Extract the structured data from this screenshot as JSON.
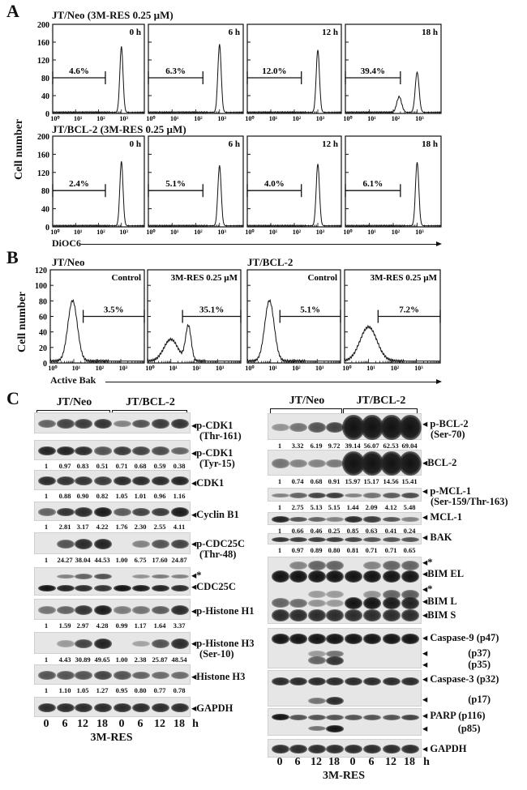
{
  "panels": {
    "a": "A",
    "b": "B",
    "c": "C"
  },
  "chart_data": [
    {
      "type": "histogram",
      "panel": "A",
      "ylabel": "Cell number",
      "xlabel": "DiOC6",
      "ylim": [
        0,
        200
      ],
      "yticks": [
        "0",
        "40",
        "80",
        "120",
        "160",
        "200"
      ],
      "xticks": [
        "10⁰",
        "10¹",
        "10²",
        "10³"
      ],
      "xlim_log10": [
        0,
        4
      ],
      "rows": [
        {
          "title": "JT/Neo (3M-RES 0.25 µM)",
          "plots": [
            {
              "label": "0 h",
              "percent": "4.6%",
              "gate_log10": [
                0,
                2.3
              ],
              "peaks": [
                {
                  "log10": 3.0,
                  "count": 148,
                  "sd": 0.07
                }
              ]
            },
            {
              "label": "6 h",
              "percent": "6.3%",
              "gate_log10": [
                0,
                2.3
              ],
              "peaks": [
                {
                  "log10": 3.0,
                  "count": 153,
                  "sd": 0.07
                }
              ]
            },
            {
              "label": "12 h",
              "percent": "12.0%",
              "gate_log10": [
                0,
                2.3
              ],
              "peaks": [
                {
                  "log10": 3.0,
                  "count": 140,
                  "sd": 0.07
                }
              ]
            },
            {
              "label": "18 h",
              "percent": "39.4%",
              "gate_log10": [
                0,
                2.3
              ],
              "peaks": [
                {
                  "log10": 2.25,
                  "count": 35,
                  "sd": 0.1
                },
                {
                  "log10": 3.0,
                  "count": 90,
                  "sd": 0.08
                }
              ]
            }
          ]
        },
        {
          "title": "JT/BCL-2 (3M-RES 0.25 µM)",
          "plots": [
            {
              "label": "0 h",
              "percent": "2.4%",
              "gate_log10": [
                0,
                2.3
              ],
              "peaks": [
                {
                  "log10": 3.0,
                  "count": 142,
                  "sd": 0.07
                }
              ]
            },
            {
              "label": "6 h",
              "percent": "5.1%",
              "gate_log10": [
                0,
                2.3
              ],
              "peaks": [
                {
                  "log10": 3.0,
                  "count": 133,
                  "sd": 0.07
                }
              ]
            },
            {
              "label": "12 h",
              "percent": "4.0%",
              "gate_log10": [
                0,
                2.3
              ],
              "peaks": [
                {
                  "log10": 3.0,
                  "count": 136,
                  "sd": 0.07
                }
              ]
            },
            {
              "label": "18 h",
              "percent": "6.1%",
              "gate_log10": [
                0,
                2.3
              ],
              "peaks": [
                {
                  "log10": 3.0,
                  "count": 140,
                  "sd": 0.07
                }
              ]
            }
          ]
        }
      ]
    },
    {
      "type": "histogram",
      "panel": "B",
      "ylabel": "Cell number",
      "xlabel": "Active Bak",
      "ylim": [
        0,
        120
      ],
      "yticks": [
        "0",
        "20",
        "40",
        "60",
        "80",
        "100",
        "120"
      ],
      "xticks": [
        "10⁰",
        "10¹",
        "10²",
        "10³"
      ],
      "xlim_log10": [
        0,
        4
      ],
      "groups": [
        "JT/Neo",
        "JT/BCL-2"
      ],
      "plots": [
        {
          "label": "Control",
          "percent": "3.5%",
          "gate_log10": [
            1.4,
            4
          ],
          "peaks": [
            {
              "log10": 0.95,
              "count": 78,
              "sd": 0.2
            }
          ]
        },
        {
          "label": "3M-RES 0.25 µM",
          "percent": "35.1%",
          "gate_log10": [
            1.5,
            4
          ],
          "peaks": [
            {
              "log10": 1.0,
              "count": 28,
              "sd": 0.3
            },
            {
              "log10": 1.75,
              "count": 45,
              "sd": 0.12
            }
          ]
        },
        {
          "label": "Control",
          "percent": "5.1%",
          "gate_log10": [
            1.4,
            4
          ],
          "peaks": [
            {
              "log10": 0.95,
              "count": 78,
              "sd": 0.2
            }
          ]
        },
        {
          "label": "3M-RES 0.25 µM",
          "percent": "7.2%",
          "gate_log10": [
            1.4,
            4
          ],
          "peaks": [
            {
              "log10": 1.0,
              "count": 44,
              "sd": 0.35
            }
          ]
        }
      ]
    }
  ],
  "blots": {
    "groups": [
      "JT/Neo",
      "JT/BCL-2"
    ],
    "lanes": [
      "0",
      "6",
      "12",
      "18",
      "0",
      "6",
      "12",
      "18"
    ],
    "unit": "h",
    "treatment": "3M-RES",
    "left": [
      {
        "labels": [
          "◂p-CDK1",
          "(Thr-161)"
        ],
        "bands": [
          [
            0.5,
            0.7,
            0.75,
            0.8,
            0.3,
            0.6,
            0.75,
            0.8
          ]
        ],
        "quant": []
      },
      {
        "labels": [
          "◂p-CDK1",
          "(Tyr-15)"
        ],
        "bands": [
          [
            0.9,
            0.9,
            0.85,
            0.6,
            0.75,
            0.7,
            0.65,
            0.5
          ]
        ],
        "quant": [
          "1",
          "0.97",
          "0.83",
          "0.51",
          "0.71",
          "0.68",
          "0.59",
          "0.38"
        ]
      },
      {
        "labels": [
          "◂CDK1"
        ],
        "bands": [
          [
            0.85,
            0.8,
            0.8,
            0.75,
            0.85,
            0.85,
            0.85,
            0.9
          ]
        ],
        "quant": [
          "1",
          "0.88",
          "0.90",
          "0.82",
          "1.05",
          "1.01",
          "0.96",
          "1.16"
        ]
      },
      {
        "labels": [
          "◂Cyclin B1"
        ],
        "bands": [
          [
            0.5,
            0.8,
            0.85,
            0.95,
            0.55,
            0.7,
            0.75,
            0.95
          ]
        ],
        "quant": [
          "1",
          "2.81",
          "3.17",
          "4.22",
          "1.76",
          "2.30",
          "2.55",
          "4.11"
        ]
      },
      {
        "labels": [
          "◂p-CDC25C",
          "(Thr-48)"
        ],
        "bands": [
          [
            0,
            0.6,
            0.85,
            0.9,
            0,
            0.3,
            0.6,
            0.7
          ]
        ],
        "quant": [
          "1",
          "24.27",
          "38.04",
          "44.53",
          "1.00",
          "6.75",
          "17.60",
          "24.87"
        ]
      },
      {
        "labels": [
          "◂*",
          "◂CDC25C"
        ],
        "bands": [
          [
            0,
            0.3,
            0.5,
            0.6,
            0,
            0.2,
            0.35,
            0.3
          ],
          [
            1,
            0.9,
            0.85,
            0.8,
            1,
            0.95,
            0.9,
            0.85
          ]
        ],
        "quant": []
      },
      {
        "labels": [
          "◂p-Histone H1"
        ],
        "bands": [
          [
            0.4,
            0.5,
            0.8,
            0.95,
            0.35,
            0.4,
            0.55,
            0.85
          ]
        ],
        "quant": [
          "1",
          "1.59",
          "2.97",
          "4.28",
          "0.99",
          "1.17",
          "1.64",
          "3.37"
        ]
      },
      {
        "labels": [
          "◂p-Histone H3",
          "(Ser-10)"
        ],
        "bands": [
          [
            0,
            0.15,
            0.7,
            0.9,
            0,
            0.1,
            0.6,
            0.85
          ]
        ],
        "quant": [
          "1",
          "4.43",
          "30.89",
          "49.65",
          "1.00",
          "2.38",
          "25.87",
          "48.54"
        ]
      },
      {
        "labels": [
          "◂Histone H3"
        ],
        "bands": [
          [
            0.6,
            0.6,
            0.6,
            0.7,
            0.6,
            0.5,
            0.45,
            0.45
          ]
        ],
        "quant": [
          "1",
          "1.10",
          "1.05",
          "1.27",
          "0.95",
          "0.80",
          "0.77",
          "0.78"
        ]
      },
      {
        "labels": [
          "◂GAPDH"
        ],
        "bands": [
          [
            0.85,
            0.85,
            0.85,
            0.85,
            0.85,
            0.85,
            0.85,
            0.85
          ]
        ],
        "quant": []
      }
    ],
    "right": [
      {
        "labels": [
          "◂ p-BCL-2",
          "(Ser-70)"
        ],
        "bands": [
          [
            0.2,
            0.4,
            0.6,
            0.7,
            1,
            1,
            1,
            1
          ]
        ],
        "quant": [
          "1",
          "3.32",
          "6.19",
          "9.72",
          "39.14",
          "56.07",
          "62.53",
          "69.04"
        ]
      },
      {
        "labels": [
          "◂BCL-2"
        ],
        "bands": [
          [
            0.4,
            0.3,
            0.3,
            0.35,
            1,
            1,
            1,
            1
          ]
        ],
        "quant": [
          "1",
          "0.74",
          "0.68",
          "0.91",
          "15.97",
          "15.17",
          "14.56",
          "15.41"
        ]
      },
      {
        "labels": [
          "◂ p-MCL-1",
          "(Ser-159/Thr-163)"
        ],
        "bands": [
          [
            0.3,
            0.5,
            0.7,
            0.75,
            0.3,
            0.4,
            0.55,
            0.65
          ]
        ],
        "quant": [
          "1",
          "2.75",
          "5.13",
          "5.15",
          "1.44",
          "2.09",
          "4.12",
          "5.48"
        ]
      },
      {
        "labels": [
          "◂ MCL-1"
        ],
        "bands": [
          [
            0.9,
            0.6,
            0.5,
            0.3,
            0.85,
            0.75,
            0.6,
            0.3
          ]
        ],
        "quant": [
          "1",
          "0.66",
          "0.46",
          "0.25",
          "0.85",
          "0.63",
          "0.41",
          "0.24"
        ]
      },
      {
        "labels": [
          "◂ BAK"
        ],
        "bands": [
          [
            0.8,
            0.75,
            0.75,
            0.75,
            0.7,
            0.6,
            0.6,
            0.6
          ]
        ],
        "quant": [
          "1",
          "0.97",
          "0.89",
          "0.80",
          "0.81",
          "0.71",
          "0.71",
          "0.65"
        ]
      },
      {
        "labels": [
          "◂*",
          "◂BIM EL",
          "◂*",
          "◂BIM L",
          "◂BIM S"
        ],
        "bands": [
          [
            0,
            0.3,
            0.5,
            0.5,
            0,
            0.3,
            0.5,
            0.5
          ],
          [
            1,
            1,
            1,
            1,
            1,
            1,
            1,
            1
          ],
          [
            0,
            0,
            0.15,
            0.15,
            0,
            0.2,
            0.5,
            0.55
          ],
          [
            0.5,
            0.45,
            0.2,
            0.15,
            1,
            1,
            0.95,
            0.9
          ],
          [
            0.85,
            0.85,
            0.85,
            0.85,
            0.85,
            0.85,
            0.85,
            0.85
          ]
        ],
        "quant": []
      },
      {
        "labels": [
          "◂ Caspase-9 (p47)",
          "◂                (p37)",
          "◂                (p35)"
        ],
        "bands": [
          [
            1,
            1,
            1,
            1,
            1,
            1,
            1,
            1
          ],
          [
            0,
            0,
            0.15,
            0.4,
            0,
            0,
            0,
            0
          ],
          [
            0,
            0,
            0.5,
            0.8,
            0,
            0,
            0,
            0
          ]
        ],
        "quant": []
      },
      {
        "labels": [
          "◂ Caspase-3 (p32)",
          "◂                (p17)"
        ],
        "bands": [
          [
            0.85,
            0.85,
            0.85,
            0.85,
            0.85,
            0.85,
            0.85,
            0.85
          ],
          [
            0,
            0,
            0.4,
            0.85,
            0,
            0,
            0,
            0
          ]
        ],
        "quant": []
      },
      {
        "labels": [
          "◂ PARP (p116)",
          "◂            (p85)"
        ],
        "bands": [
          [
            1,
            0.6,
            0.6,
            0.6,
            0.6,
            0.6,
            0.6,
            0.7
          ],
          [
            0,
            0,
            0.4,
            1,
            0,
            0,
            0,
            0
          ]
        ],
        "quant": []
      },
      {
        "labels": [
          "◂ GAPDH"
        ],
        "bands": [
          [
            0.85,
            0.85,
            0.85,
            0.85,
            0.85,
            0.85,
            0.85,
            0.85
          ]
        ],
        "quant": []
      }
    ]
  }
}
